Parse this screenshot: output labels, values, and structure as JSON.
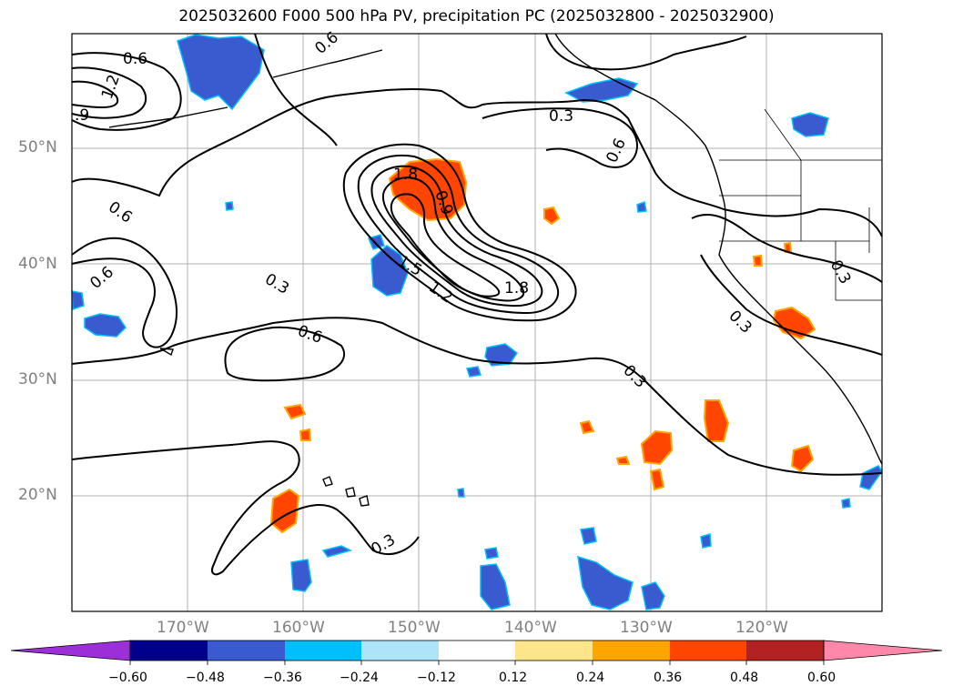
{
  "title": "2025032600 F000 500 hPa PV, precipitation PC (2025032800 - 2025032900)",
  "lat_labels": [
    "50°N",
    "40°N",
    "30°N",
    "20°N"
  ],
  "lon_labels": [
    "170°W",
    "160°W",
    "150°W",
    "140°W",
    "130°W",
    "120°W"
  ],
  "contour_labels": [
    "0.6",
    "1.2",
    ".9",
    "0.3",
    "0.6",
    "1.8",
    "1.5",
    "1.2",
    "1.8",
    "0.9",
    "0.6",
    "0.3",
    "0.6",
    "0.6",
    "0.3",
    "0.3",
    "0.3",
    "0.3",
    "0.6"
  ],
  "colorbar": {
    "ticks": [
      "−0.60",
      "−0.48",
      "−0.36",
      "−0.24",
      "−0.12",
      "0.12",
      "0.24",
      "0.36",
      "0.48",
      "0.60"
    ],
    "colors": [
      "#9b30d9",
      "#00008b",
      "#3a5bd0",
      "#00bfff",
      "#aee4fa",
      "#ffffff",
      "#fde68a",
      "#ffa500",
      "#ff4500",
      "#b22222",
      "#ff88aa"
    ]
  },
  "colors": {
    "negative_precip": "#3a5bd0",
    "positive_precip": "#ff4500",
    "contour": "#000000",
    "gridline": "#b0b0b0"
  }
}
